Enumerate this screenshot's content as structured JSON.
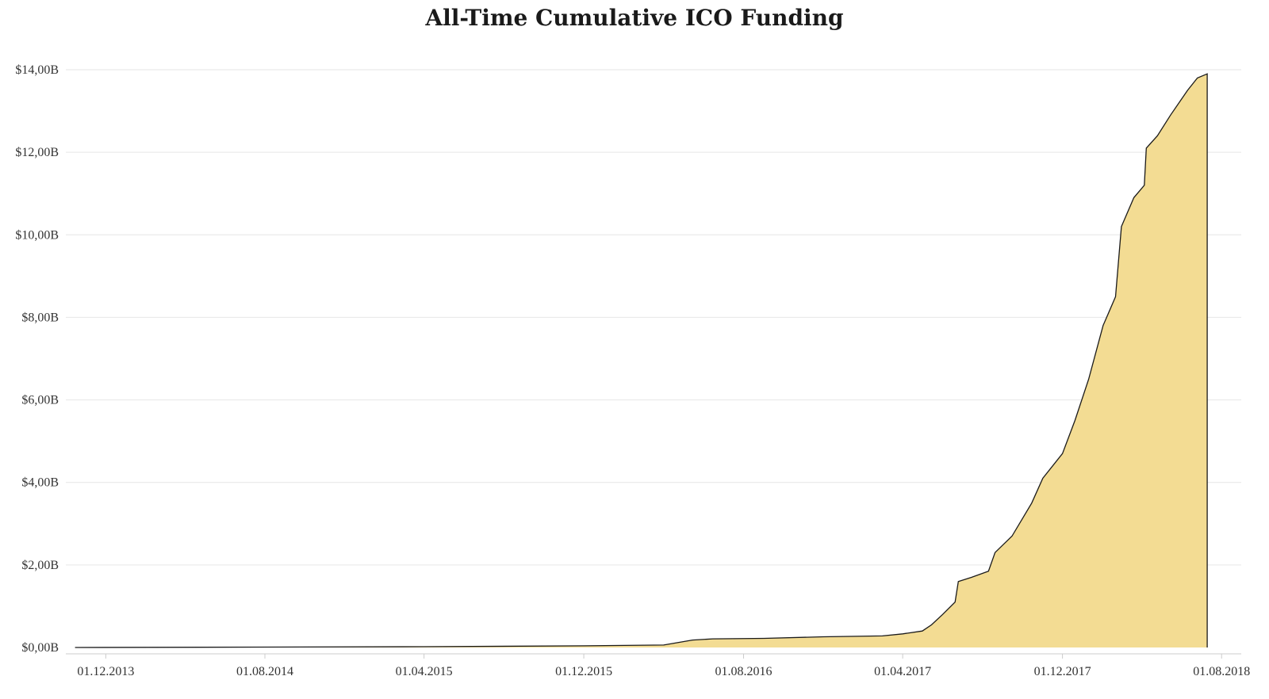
{
  "chart_data": {
    "type": "area",
    "title": "All-Time Cumulative ICO Funding",
    "xlabel": "",
    "ylabel": "",
    "grid": true,
    "legend": "none",
    "colors": {
      "fill": "#f3dc93",
      "line": "#1a1a1a",
      "grid": "#e6e6e6"
    },
    "x_range": [
      "2013-10-01",
      "2018-08-31"
    ],
    "x_ticks": [
      {
        "date": "2013-12-01",
        "label": "01.12.2013"
      },
      {
        "date": "2014-08-01",
        "label": "01.08.2014"
      },
      {
        "date": "2015-04-01",
        "label": "01.04.2015"
      },
      {
        "date": "2015-12-01",
        "label": "01.12.2015"
      },
      {
        "date": "2016-08-01",
        "label": "01.08.2016"
      },
      {
        "date": "2017-04-01",
        "label": "01.04.2017"
      },
      {
        "date": "2017-12-01",
        "label": "01.12.2017"
      },
      {
        "date": "2018-08-01",
        "label": "01.08.2018"
      }
    ],
    "ylim": [
      0,
      14000000000
    ],
    "y_ticks": [
      {
        "value": 0,
        "label": "$0,00B"
      },
      {
        "value": 2000000000,
        "label": "$2,00B"
      },
      {
        "value": 4000000000,
        "label": "$4,00B"
      },
      {
        "value": 6000000000,
        "label": "$6,00B"
      },
      {
        "value": 8000000000,
        "label": "$8,00B"
      },
      {
        "value": 10000000000,
        "label": "$10,00B"
      },
      {
        "value": 12000000000,
        "label": "$12,00B"
      },
      {
        "value": 14000000000,
        "label": "$14,00B"
      }
    ],
    "series": [
      {
        "points": [
          [
            "2013-10-15",
            0.0
          ],
          [
            "2014-08-01",
            0.01
          ],
          [
            "2015-04-01",
            0.02
          ],
          [
            "2015-12-01",
            0.04
          ],
          [
            "2016-04-01",
            0.06
          ],
          [
            "2016-05-15",
            0.18
          ],
          [
            "2016-06-15",
            0.21
          ],
          [
            "2016-09-01",
            0.22
          ],
          [
            "2016-12-01",
            0.26
          ],
          [
            "2017-03-01",
            0.28
          ],
          [
            "2017-04-01",
            0.33
          ],
          [
            "2017-05-01",
            0.4
          ],
          [
            "2017-05-15",
            0.55
          ],
          [
            "2017-06-01",
            0.8
          ],
          [
            "2017-06-20",
            1.1
          ],
          [
            "2017-06-25",
            1.6
          ],
          [
            "2017-07-15",
            1.7
          ],
          [
            "2017-08-10",
            1.85
          ],
          [
            "2017-08-20",
            2.3
          ],
          [
            "2017-09-15",
            2.7
          ],
          [
            "2017-10-15",
            3.5
          ],
          [
            "2017-11-01",
            4.1
          ],
          [
            "2017-12-01",
            4.7
          ],
          [
            "2017-12-20",
            5.5
          ],
          [
            "2018-01-10",
            6.5
          ],
          [
            "2018-02-01",
            7.8
          ],
          [
            "2018-02-20",
            8.5
          ],
          [
            "2018-03-01",
            10.2
          ],
          [
            "2018-03-20",
            10.9
          ],
          [
            "2018-04-05",
            11.2
          ],
          [
            "2018-04-08",
            12.1
          ],
          [
            "2018-04-25",
            12.4
          ],
          [
            "2018-05-15",
            12.9
          ],
          [
            "2018-06-10",
            13.5
          ],
          [
            "2018-06-25",
            13.8
          ],
          [
            "2018-07-10",
            13.9
          ]
        ]
      }
    ],
    "y_unit_scale": 1000000000
  }
}
